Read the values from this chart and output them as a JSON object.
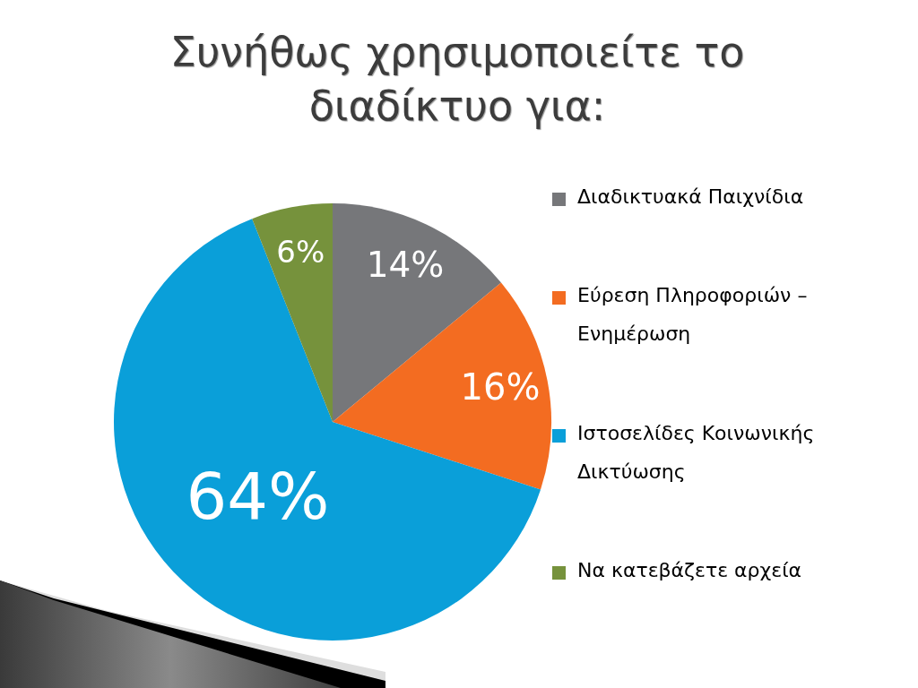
{
  "chart_data": {
    "type": "pie",
    "title": "Συνήθως χρησιμοποιείτε το διαδίκτυο για:",
    "categories": [
      "Διαδικτυακά Παιχνίδια",
      "Εύρεση Πληροφοριών – Ενημέρωση",
      "Ιστοσελίδες Κοινωνικής Δικτύωσης",
      "Να κατεβάζετε αρχεία"
    ],
    "values": [
      14,
      16,
      64,
      6
    ],
    "value_labels": [
      "14%",
      "16%",
      "64%",
      "6%"
    ],
    "colors": [
      "#76777a",
      "#f36c21",
      "#0a9fd9",
      "#76923c"
    ],
    "legend": "right"
  }
}
